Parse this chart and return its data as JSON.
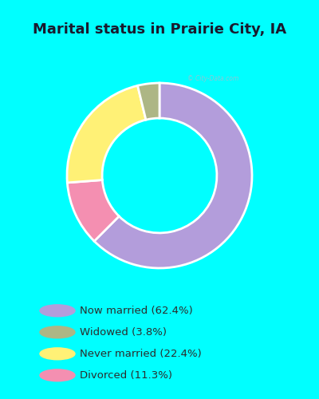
{
  "title": "Marital status in Prairie City, IA",
  "title_fontsize": 13,
  "title_color": "#1a1a2e",
  "bg_cyan": "#00ffff",
  "chart_bg_color": "#d8edd8",
  "categories": [
    "Now married",
    "Divorced",
    "Never married",
    "Widowed"
  ],
  "values": [
    62.4,
    11.3,
    22.4,
    3.8
  ],
  "colors": [
    "#b39ddb",
    "#f48fb1",
    "#fff176",
    "#adb685"
  ],
  "legend_labels": [
    "Now married (62.4%)",
    "Widowed (3.8%)",
    "Never married (22.4%)",
    "Divorced (11.3%)"
  ],
  "legend_colors": [
    "#b39ddb",
    "#adb685",
    "#fff176",
    "#f48fb1"
  ],
  "donut_width": 0.38,
  "start_angle": 90
}
